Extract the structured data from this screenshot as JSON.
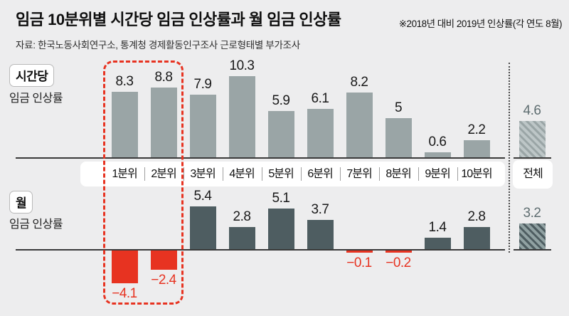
{
  "header": {
    "title": "임금 10분위별 시간당 임금 인상률과 월 임금 인상률",
    "note": "※2018년 대비 2019년 인상률(각 연도 8월)",
    "source": "자료: 한국노동사회연구소, 통계청 경제활동인구조사 근로형태별 부가조사"
  },
  "chart_data": [
    {
      "type": "bar",
      "title": "시간당 임금 인상률",
      "row_badge": "시간당",
      "row_sub": "임금 인상률",
      "categories": [
        "1분위",
        "2분위",
        "3분위",
        "4분위",
        "5분위",
        "6분위",
        "7분위",
        "8분위",
        "9분위",
        "10분위"
      ],
      "values": [
        8.3,
        8.8,
        7.9,
        10.3,
        5.9,
        6.1,
        8.2,
        5,
        0.6,
        2.2
      ],
      "overall": {
        "label": "전체",
        "value": 4.6
      },
      "ylim": [
        0,
        11
      ],
      "grid": false,
      "legend": "none",
      "value_labels": "above-bars"
    },
    {
      "type": "bar",
      "title": "월 임금 인상률",
      "row_badge": "월",
      "row_sub": "임금 인상률",
      "categories": [
        "1분위",
        "2분위",
        "3분위",
        "4분위",
        "5분위",
        "6분위",
        "7분위",
        "8분위",
        "9분위",
        "10분위"
      ],
      "values": [
        -4.1,
        -2.4,
        5.4,
        2.8,
        5.1,
        3.7,
        -0.1,
        -0.2,
        1.4,
        2.8
      ],
      "overall": {
        "label": "전체",
        "value": 3.2
      },
      "ylim": [
        -5,
        6
      ],
      "grid": false,
      "legend": "none",
      "value_labels": "above-positive-below-negative"
    }
  ],
  "annotations": {
    "highlighted_categories": [
      "1분위",
      "2분위"
    ],
    "highlight_style": "red-dashed-box",
    "overall_column_separator": "vertical-dotted-line"
  },
  "colors": {
    "background": "#ededee",
    "bar_hourly": "#9aa5a6",
    "bar_monthly": "#4e5d61",
    "bar_negative": "#e73321",
    "hatch_light_base": "#bdc6c7",
    "hatch_light_stripe": "#9aa5a6",
    "hatch_dark_base": "#90a1a2",
    "hatch_dark_stripe": "#4e5d61",
    "overall_value_text": "#5f6e71",
    "axis": "#3a3a3a",
    "text": "#111111"
  }
}
